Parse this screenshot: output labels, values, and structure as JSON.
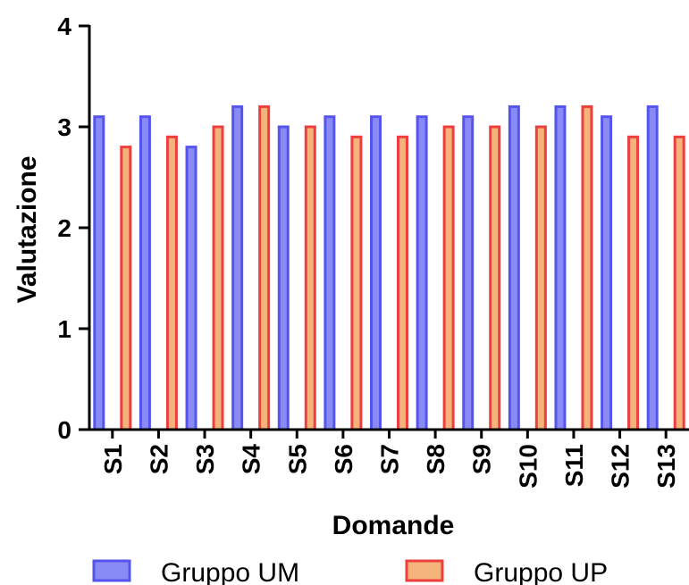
{
  "chart_data": {
    "type": "bar",
    "title": "",
    "xlabel": "Domande",
    "ylabel": "Valutazione",
    "ylim": [
      0,
      4
    ],
    "yticks": [
      0,
      1,
      2,
      3,
      4
    ],
    "categories": [
      "S1",
      "S2",
      "S3",
      "S4",
      "S5",
      "S6",
      "S7",
      "S8",
      "S9",
      "S10",
      "S11",
      "S12",
      "S13"
    ],
    "series": [
      {
        "name": "Gruppo UM",
        "values": [
          3.1,
          3.1,
          2.8,
          3.2,
          3.0,
          3.1,
          3.1,
          3.1,
          3.1,
          3.2,
          3.2,
          3.1,
          3.2
        ]
      },
      {
        "name": "Gruppo UP",
        "values": [
          2.8,
          2.9,
          3.0,
          3.2,
          3.0,
          2.9,
          2.9,
          3.0,
          3.0,
          3.0,
          3.2,
          2.9,
          2.9
        ]
      }
    ],
    "colors": {
      "Gruppo UM": {
        "stroke": "#5555ee",
        "fill": "#8a8af5"
      },
      "Gruppo UP": {
        "stroke": "#ee3f3f",
        "fill": "#f3b37a"
      }
    },
    "legend_position": "bottom",
    "grid": false
  }
}
